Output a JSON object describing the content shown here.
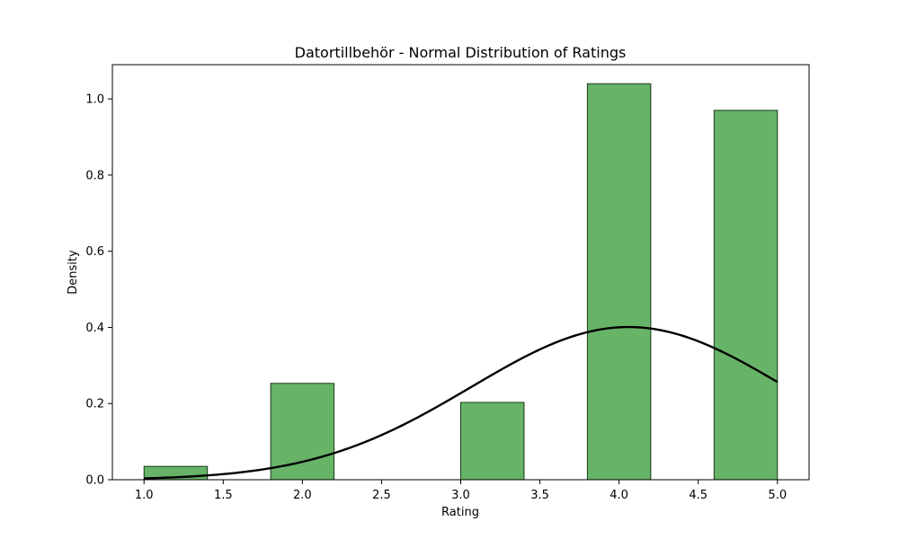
{
  "chart_data": {
    "type": "histogram",
    "title": "Datortillbehör - Normal Distribution of Ratings",
    "xlabel": "Rating",
    "ylabel": "Density",
    "xlim": [
      0.8,
      5.2
    ],
    "ylim": [
      0,
      1.09
    ],
    "xticks": [
      1.0,
      1.5,
      2.0,
      2.5,
      3.0,
      3.5,
      4.0,
      4.5,
      5.0
    ],
    "xtick_labels": [
      "1.0",
      "1.5",
      "2.0",
      "2.5",
      "3.0",
      "3.5",
      "4.0",
      "4.5",
      "5.0"
    ],
    "yticks": [
      0.0,
      0.2,
      0.4,
      0.6,
      0.8,
      1.0
    ],
    "ytick_labels": [
      "0.0",
      "0.2",
      "0.4",
      "0.6",
      "0.8",
      "1.0"
    ],
    "bins": [
      {
        "x0": 1.0,
        "x1": 1.4,
        "density": 0.035
      },
      {
        "x0": 1.4,
        "x1": 1.8,
        "density": 0.0
      },
      {
        "x0": 1.8,
        "x1": 2.2,
        "density": 0.253
      },
      {
        "x0": 2.2,
        "x1": 2.6,
        "density": 0.0
      },
      {
        "x0": 2.6,
        "x1": 3.0,
        "density": 0.0
      },
      {
        "x0": 3.0,
        "x1": 3.4,
        "density": 0.203
      },
      {
        "x0": 3.4,
        "x1": 3.8,
        "density": 0.0
      },
      {
        "x0": 3.8,
        "x1": 4.2,
        "density": 1.04
      },
      {
        "x0": 4.2,
        "x1": 4.6,
        "density": 0.0
      },
      {
        "x0": 4.6,
        "x1": 5.0,
        "density": 0.97
      }
    ],
    "normal_curve": {
      "mean": 4.06,
      "std": 0.995,
      "x_range": [
        1.0,
        5.0
      ]
    },
    "bar_color": "#4ca64c",
    "bar_edge_color": "#1a3a1a",
    "curve_color": "#000000",
    "grid": false,
    "legend": "none"
  }
}
